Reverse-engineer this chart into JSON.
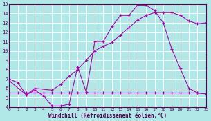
{
  "line1_x": [
    0,
    1,
    2,
    3,
    4,
    5,
    6,
    7,
    8,
    9,
    10,
    11,
    12,
    13,
    14,
    15,
    16,
    17,
    18,
    19,
    20,
    21,
    22,
    23
  ],
  "line1_y": [
    7.0,
    6.6,
    5.3,
    5.8,
    5.2,
    4.1,
    4.1,
    4.3,
    8.3,
    5.6,
    11.0,
    11.0,
    12.6,
    13.8,
    13.8,
    14.9,
    14.9,
    14.3,
    13.0,
    10.2,
    8.1,
    6.0,
    5.5,
    5.4
  ],
  "line2_x": [
    0,
    2,
    3,
    5,
    6,
    7,
    8,
    9,
    10,
    11,
    12,
    13,
    14,
    15,
    16,
    17,
    18,
    19,
    20,
    21,
    22,
    23
  ],
  "line2_y": [
    6.8,
    5.3,
    6.0,
    5.8,
    6.4,
    7.3,
    8.0,
    9.0,
    10.0,
    10.5,
    10.9,
    11.7,
    12.5,
    13.3,
    13.8,
    14.1,
    14.1,
    14.1,
    13.8,
    13.2,
    12.9,
    13.0
  ],
  "line3_x": [
    0,
    1,
    2,
    3,
    4,
    5,
    6,
    7,
    8,
    9,
    10,
    11,
    12,
    13,
    14,
    15,
    16,
    17,
    18,
    19,
    20,
    21,
    22,
    23
  ],
  "line3_y": [
    5.5,
    5.5,
    5.5,
    5.5,
    5.5,
    5.5,
    5.5,
    5.5,
    5.5,
    5.5,
    5.5,
    5.5,
    5.5,
    5.5,
    5.5,
    5.5,
    5.5,
    5.5,
    5.5,
    5.5,
    5.5,
    5.5,
    5.5,
    5.4
  ],
  "line_color": "#aa00aa",
  "bg_color": "#b0e8e8",
  "grid_color": "#ffffff",
  "xlabel": "Windchill (Refroidissement éolien,°C)",
  "xlim": [
    0,
    23
  ],
  "ylim": [
    4,
    15
  ],
  "xticks": [
    0,
    1,
    2,
    3,
    4,
    5,
    6,
    7,
    8,
    9,
    10,
    11,
    12,
    13,
    14,
    15,
    16,
    17,
    18,
    19,
    20,
    21,
    22,
    23
  ],
  "yticks": [
    4,
    5,
    6,
    7,
    8,
    9,
    10,
    11,
    12,
    13,
    14,
    15
  ],
  "figw": 3.05,
  "figh": 1.75
}
